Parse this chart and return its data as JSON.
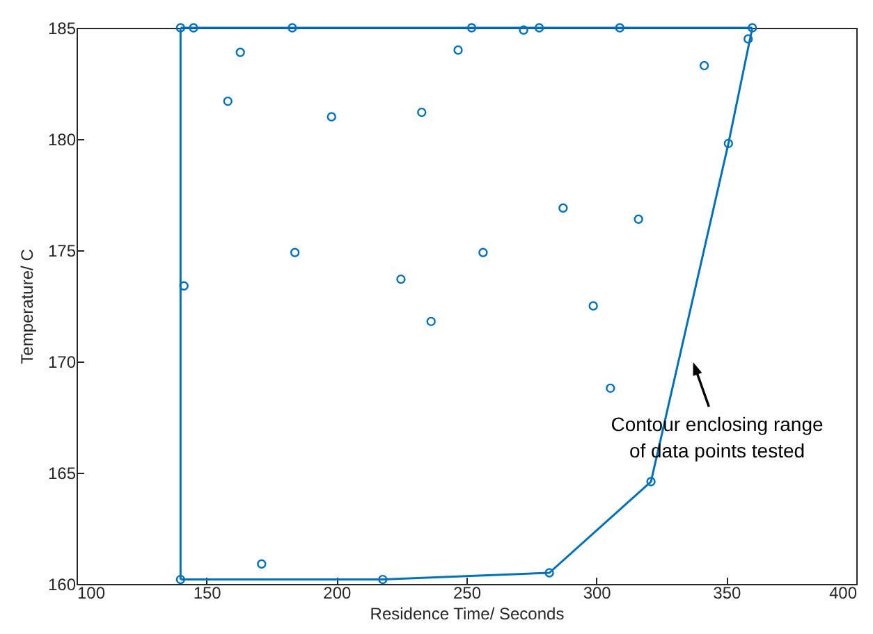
{
  "chart_data": {
    "type": "scatter",
    "xlabel": "Residence Time/ Seconds",
    "ylabel": "Temperature/ C",
    "xlim": [
      100,
      400
    ],
    "xticks": [
      100,
      150,
      200,
      250,
      300,
      350,
      400
    ],
    "ylim": [
      160,
      185
    ],
    "yticks": [
      160,
      165,
      170,
      175,
      180,
      185
    ],
    "grid": false,
    "marker": "circle",
    "series": [
      {
        "color": "#0072bd",
        "x": [
          140,
          145,
          183,
          252,
          272,
          278,
          309,
          360,
          163,
          158.2,
          198.1,
          232.8,
          246.8,
          184,
          256.4,
          141.3,
          224.8,
          236.4,
          171.2,
          140,
          217.8,
          281.9,
          321,
          298.8,
          305.4,
          341.5,
          350.8,
          358.4,
          287.2,
          316.2
        ],
        "values": [
          185,
          185,
          185,
          185,
          184.9,
          185,
          185,
          185,
          183.9,
          181.7,
          181,
          181.2,
          184,
          174.9,
          174.9,
          173.4,
          173.7,
          171.8,
          160.9,
          160.2,
          160.2,
          160.5,
          164.6,
          172.5,
          168.8,
          183.3,
          179.8,
          184.5,
          176.9,
          176.4
        ]
      },
      {
        "type": "line",
        "color": "#0072bd",
        "marker": "none",
        "line_style": "solid",
        "x": [
          140,
          217.8,
          281.9,
          321,
          350.8,
          360
        ],
        "values": [
          160.2,
          160.2,
          160.5,
          164.6,
          179.8,
          185
        ]
      },
      {
        "type": "line",
        "color": "#0072bd",
        "marker": "none",
        "line_style": "solid",
        "x": [
          140,
          360
        ],
        "values": [
          185,
          185
        ]
      },
      {
        "type": "line",
        "color": "#0072bd",
        "marker": "none",
        "line_style": "solid",
        "x": [
          140,
          140
        ],
        "values": [
          160.2,
          185
        ]
      }
    ],
    "annotations": [
      "Contour enclosing range\nof data points tested"
    ]
  }
}
